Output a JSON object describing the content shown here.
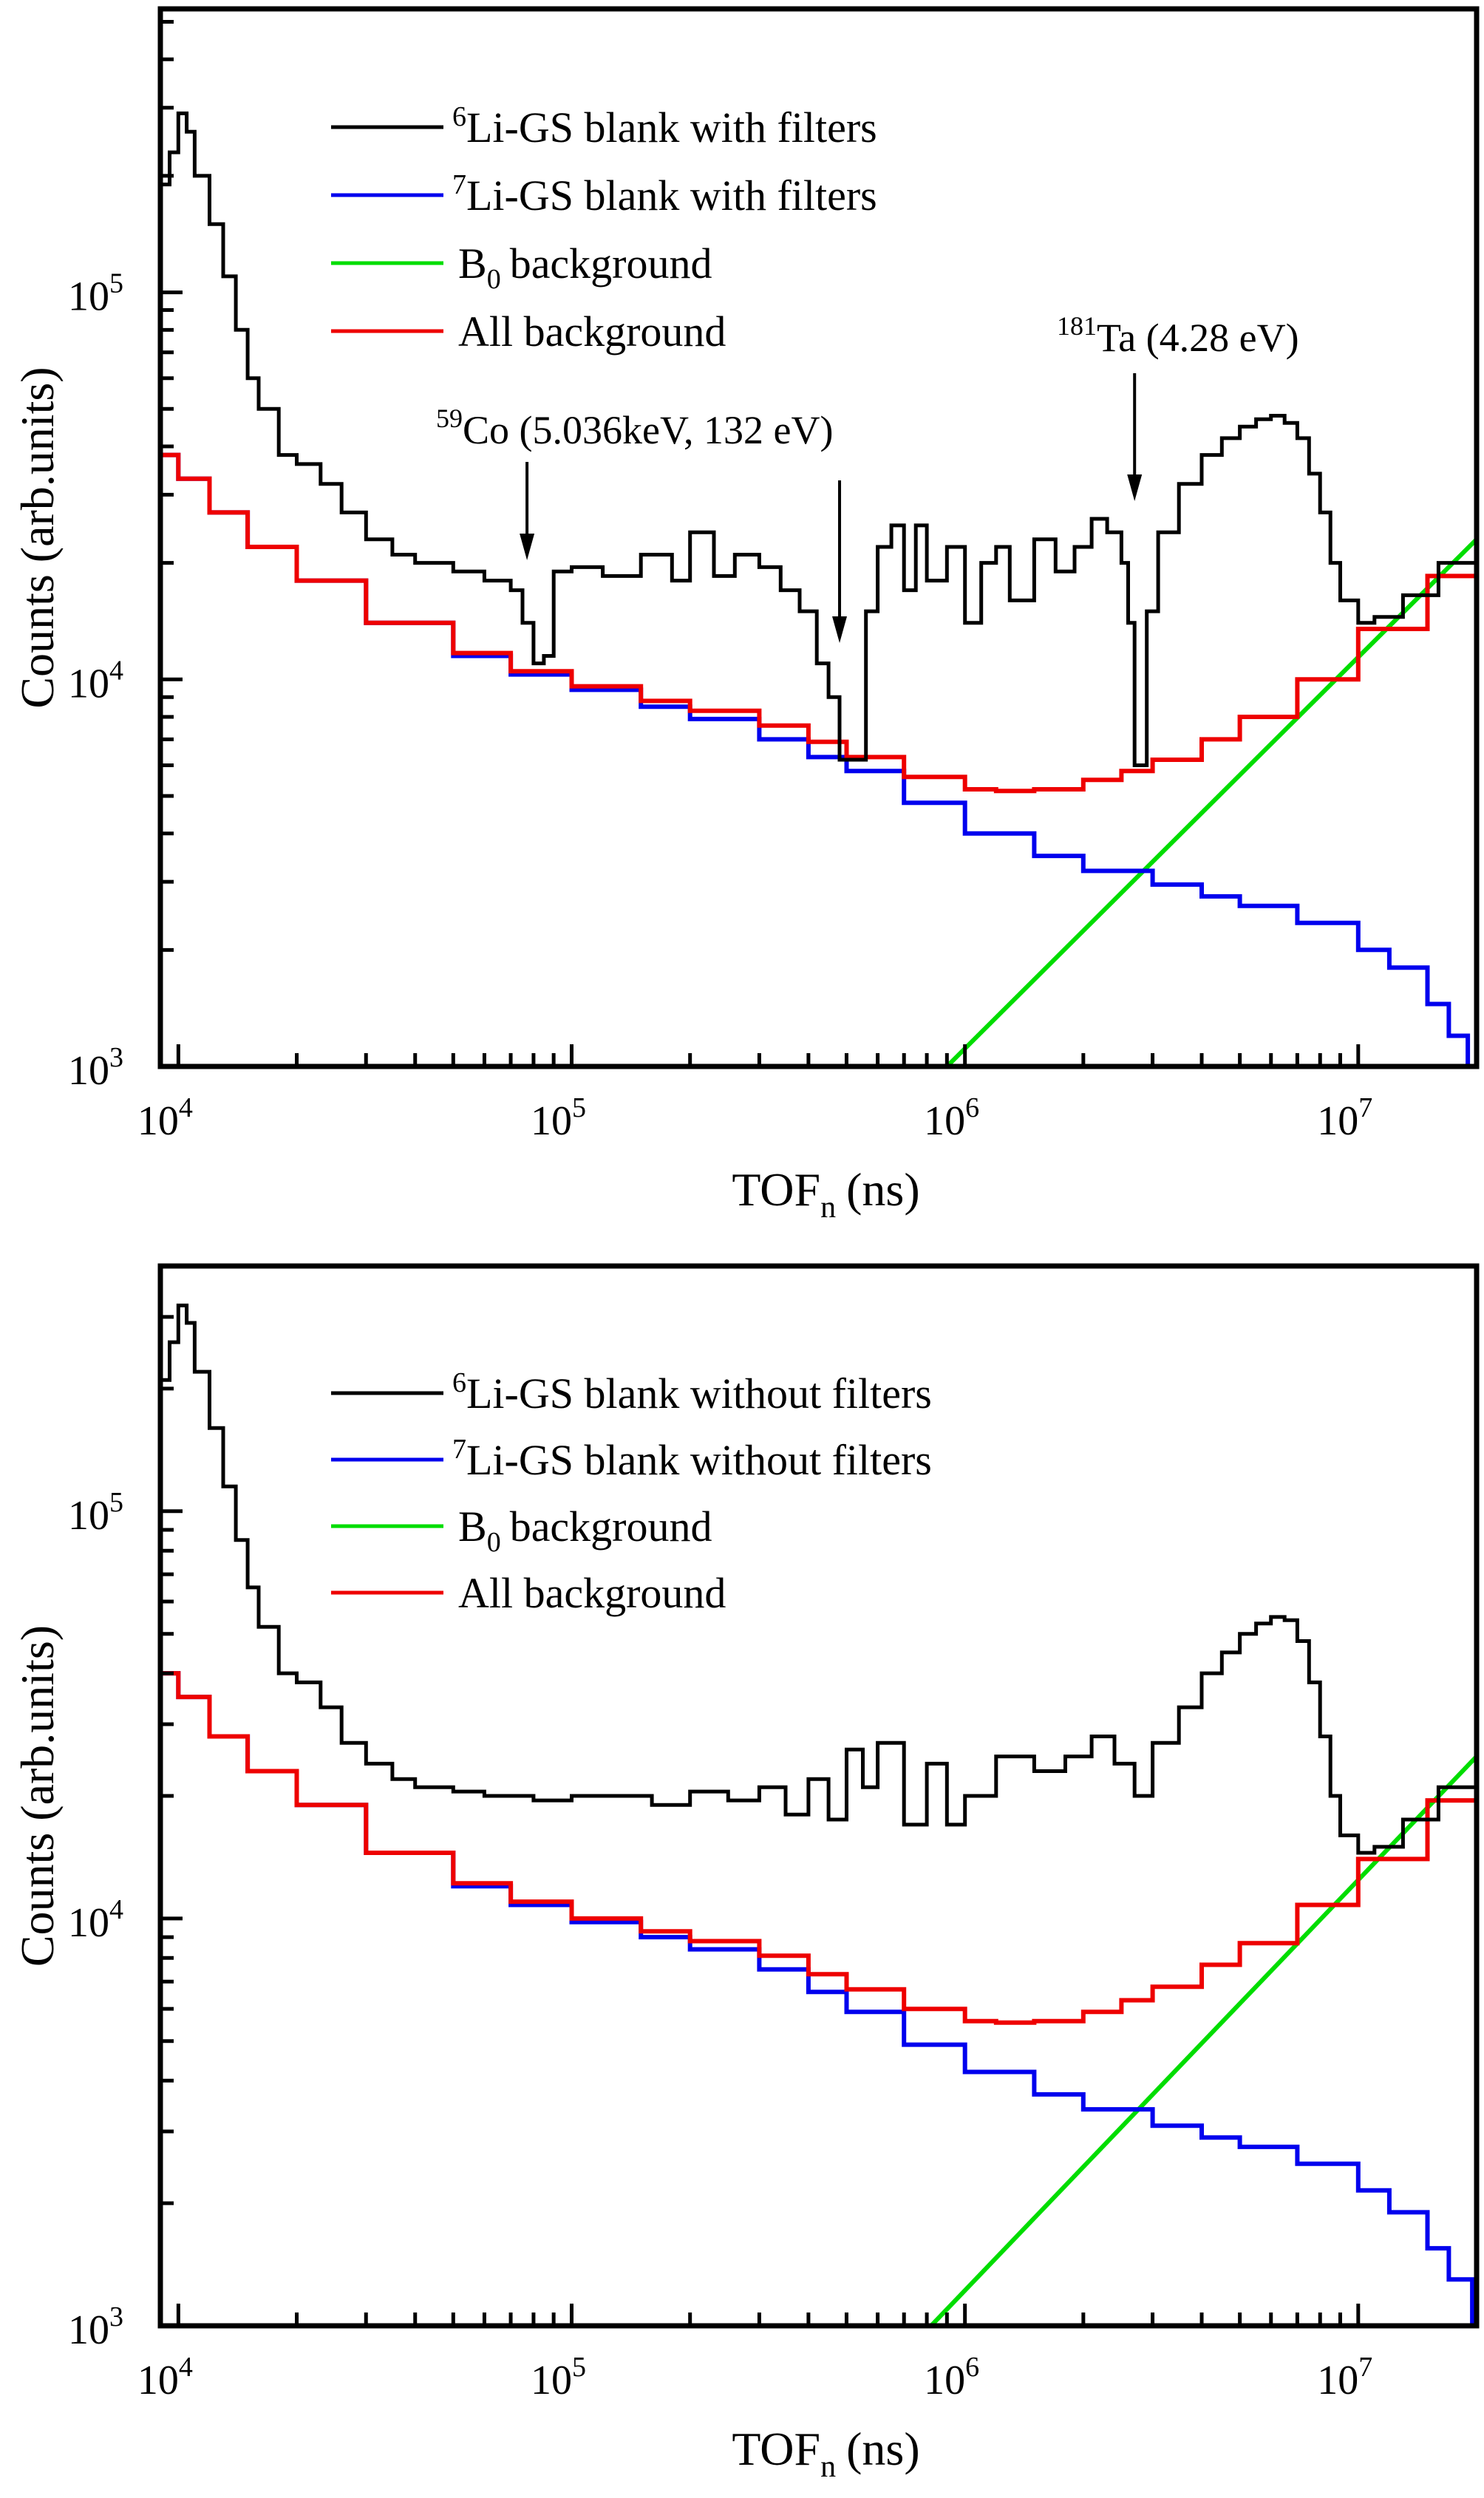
{
  "chart_data": [
    {
      "type": "line",
      "title": "",
      "xlabel": "TOF",
      "xlabel_sub": "n",
      "xlabel_unit": "(ns)",
      "ylabel": "Counts (arb.units)",
      "xscale": "log",
      "yscale": "log",
      "xlim": [
        9000,
        20000000
      ],
      "ylim": [
        1000,
        540000
      ],
      "x_ticks": [
        {
          "base": "10",
          "exp": "4",
          "value": 10000
        },
        {
          "base": "10",
          "exp": "5",
          "value": 100000
        },
        {
          "base": "10",
          "exp": "6",
          "value": 1000000
        },
        {
          "base": "10",
          "exp": "7",
          "value": 10000000
        }
      ],
      "y_ticks": [
        {
          "base": "10",
          "exp": "3",
          "value": 1000
        },
        {
          "base": "10",
          "exp": "4",
          "value": 10000
        },
        {
          "base": "10",
          "exp": "5",
          "value": 100000
        }
      ],
      "legend_position": "top-center",
      "series": [
        {
          "name_sup": "6",
          "name": "Li-GS blank with filters",
          "color": "#000000",
          "x": [
            9000,
            9500,
            10000,
            10500,
            11000,
            12000,
            13000,
            14000,
            15000,
            16000,
            18000,
            20000,
            23000,
            26000,
            30000,
            35000,
            40000,
            50000,
            60000,
            70000,
            75000,
            80000,
            85000,
            90000,
            100000,
            120000,
            150000,
            180000,
            200000,
            230000,
            260000,
            300000,
            340000,
            380000,
            420000,
            450000,
            480000,
            520000,
            560000,
            600000,
            650000,
            700000,
            750000,
            800000,
            900000,
            1000000,
            1100000,
            1200000,
            1300000,
            1500000,
            1700000,
            1900000,
            2100000,
            2300000,
            2500000,
            2600000,
            2700000,
            2800000,
            2900000,
            3100000,
            3500000,
            4000000,
            4500000,
            5000000,
            5500000,
            6000000,
            6500000,
            7000000,
            7500000,
            8000000,
            8500000,
            9000000,
            10000000,
            11000000,
            13000000,
            16000000,
            20000000
          ],
          "y": [
            190000,
            230000,
            290000,
            260000,
            200000,
            150000,
            110000,
            80000,
            60000,
            50000,
            38000,
            36000,
            32000,
            27000,
            23000,
            21000,
            20000,
            19000,
            18000,
            17000,
            14000,
            11000,
            11500,
            19000,
            19500,
            18500,
            21000,
            18000,
            24000,
            18500,
            21000,
            19500,
            17000,
            15000,
            11000,
            9000,
            6200,
            6200,
            15000,
            22000,
            25000,
            17000,
            25000,
            18000,
            22000,
            14000,
            20000,
            22000,
            16000,
            23000,
            19000,
            22000,
            26000,
            24000,
            20000,
            14000,
            6000,
            6000,
            15000,
            24000,
            32000,
            38000,
            42000,
            45000,
            47000,
            48000,
            46000,
            42000,
            34000,
            27000,
            20000,
            16000,
            14000,
            14500,
            16500,
            20000,
            24000
          ]
        },
        {
          "name_sup": "7",
          "name": "Li-GS blank with filters",
          "color": "#0000ee",
          "x": [
            9000,
            10000,
            12000,
            15000,
            20000,
            30000,
            50000,
            70000,
            100000,
            150000,
            200000,
            300000,
            400000,
            500000,
            700000,
            1000000,
            1500000,
            2000000,
            3000000,
            4000000,
            5000000,
            7000000,
            10000000,
            12000000,
            15000000,
            17000000,
            19000000
          ],
          "y": [
            38000,
            33000,
            27000,
            22000,
            18000,
            14000,
            11500,
            10300,
            9400,
            8500,
            7900,
            7000,
            6300,
            5800,
            4800,
            4000,
            3500,
            3200,
            2950,
            2750,
            2600,
            2350,
            2000,
            1800,
            1450,
            1200,
            1000
          ]
        },
        {
          "name": "background",
          "name_prefix": "B",
          "name_sub": "0",
          "color": "#00dd00",
          "x": [
            900000,
            20000000
          ],
          "y": [
            1000,
            23000
          ]
        },
        {
          "name": "All background",
          "color": "#ee0000",
          "x": [
            9000,
            10000,
            12000,
            15000,
            20000,
            30000,
            50000,
            70000,
            100000,
            150000,
            200000,
            300000,
            400000,
            500000,
            700000,
            1000000,
            1200000,
            1500000,
            2000000,
            2500000,
            3000000,
            4000000,
            5000000,
            7000000,
            10000000,
            15000000,
            20000000
          ],
          "y": [
            38000,
            33000,
            27000,
            22000,
            18000,
            14000,
            11700,
            10500,
            9600,
            8800,
            8300,
            7600,
            6900,
            6300,
            5600,
            5200,
            5150,
            5200,
            5500,
            5800,
            6200,
            7000,
            8000,
            10000,
            13500,
            18500,
            24000
          ]
        }
      ],
      "annotations": [
        {
          "sup": "59",
          "text": "Co (5.036keV, 132 eV)",
          "arrows_x": [
            77000,
            480000
          ]
        },
        {
          "sup": "181",
          "text": "Ta (4.28 eV)",
          "arrows_x": [
            2700000
          ]
        }
      ]
    },
    {
      "type": "line",
      "title": "",
      "xlabel": "TOF",
      "xlabel_sub": "n",
      "xlabel_unit": "(ns)",
      "ylabel": "Counts (arb.units)",
      "xscale": "log",
      "yscale": "log",
      "xlim": [
        9000,
        20000000
      ],
      "ylim": [
        1000,
        400000
      ],
      "x_ticks": [
        {
          "base": "10",
          "exp": "4",
          "value": 10000
        },
        {
          "base": "10",
          "exp": "5",
          "value": 100000
        },
        {
          "base": "10",
          "exp": "6",
          "value": 1000000
        },
        {
          "base": "10",
          "exp": "7",
          "value": 10000000
        }
      ],
      "y_ticks": [
        {
          "base": "10",
          "exp": "3",
          "value": 1000
        },
        {
          "base": "10",
          "exp": "4",
          "value": 10000
        },
        {
          "base": "10",
          "exp": "5",
          "value": 100000
        }
      ],
      "legend_position": "top-center",
      "series": [
        {
          "name_sup": "6",
          "name": "Li-GS blank without filters",
          "color": "#000000",
          "x": [
            9000,
            9500,
            10000,
            10500,
            11000,
            12000,
            13000,
            14000,
            15000,
            16000,
            18000,
            20000,
            23000,
            26000,
            30000,
            35000,
            40000,
            50000,
            60000,
            80000,
            100000,
            130000,
            160000,
            200000,
            250000,
            300000,
            350000,
            400000,
            450000,
            500000,
            550000,
            600000,
            700000,
            800000,
            900000,
            1000000,
            1200000,
            1500000,
            1800000,
            2100000,
            2400000,
            2700000,
            3000000,
            3500000,
            4000000,
            4500000,
            5000000,
            5500000,
            6000000,
            6500000,
            7000000,
            7500000,
            8000000,
            8500000,
            9000000,
            10000000,
            11000000,
            13000000,
            16000000,
            20000000
          ],
          "y": [
            210000,
            260000,
            320000,
            290000,
            220000,
            160000,
            115000,
            85000,
            65000,
            52000,
            40000,
            38000,
            33000,
            27000,
            24000,
            22000,
            21000,
            20500,
            20000,
            19500,
            20000,
            20000,
            19000,
            20500,
            19500,
            21000,
            18000,
            22000,
            17500,
            26000,
            21000,
            27000,
            17000,
            24000,
            17000,
            20000,
            25000,
            23000,
            25000,
            28000,
            24000,
            20000,
            27000,
            33000,
            40000,
            45000,
            50000,
            53000,
            55000,
            54000,
            48000,
            38000,
            28000,
            20000,
            16000,
            14500,
            15000,
            17500,
            21000,
            25500
          ]
        },
        {
          "name_sup": "7",
          "name": "Li-GS blank without filters",
          "color": "#0000ee",
          "x": [
            9000,
            10000,
            12000,
            15000,
            20000,
            30000,
            50000,
            70000,
            100000,
            150000,
            200000,
            300000,
            400000,
            500000,
            700000,
            1000000,
            1500000,
            2000000,
            3000000,
            4000000,
            5000000,
            7000000,
            10000000,
            12000000,
            15000000,
            17000000,
            19500000
          ],
          "y": [
            40000,
            35000,
            28000,
            23000,
            19000,
            14500,
            12000,
            10800,
            9800,
            9000,
            8400,
            7500,
            6600,
            5900,
            4900,
            4200,
            3700,
            3400,
            3100,
            2900,
            2750,
            2500,
            2150,
            1900,
            1550,
            1300,
            1000
          ]
        },
        {
          "name": "background",
          "name_prefix": "B",
          "name_sub": "0",
          "color": "#00dd00",
          "x": [
            820000,
            20000000
          ],
          "y": [
            1000,
            25000
          ]
        },
        {
          "name": "All background",
          "color": "#ee0000",
          "x": [
            9000,
            10000,
            12000,
            15000,
            20000,
            30000,
            50000,
            70000,
            100000,
            150000,
            200000,
            300000,
            400000,
            500000,
            700000,
            1000000,
            1200000,
            1500000,
            2000000,
            2500000,
            3000000,
            4000000,
            5000000,
            7000000,
            10000000,
            15000000,
            20000000
          ],
          "y": [
            40000,
            35000,
            28000,
            23000,
            19000,
            14500,
            12200,
            11000,
            10000,
            9300,
            8800,
            8100,
            7300,
            6700,
            6000,
            5600,
            5550,
            5600,
            5900,
            6300,
            6800,
            7700,
            8700,
            10800,
            14000,
            19500,
            25500
          ]
        }
      ],
      "annotations": []
    }
  ]
}
